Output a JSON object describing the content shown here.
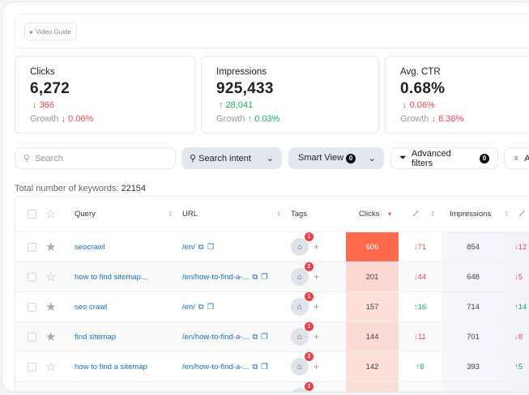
{
  "header": {
    "video_guide": "Video Guide"
  },
  "stats": [
    {
      "title": "Clicks",
      "value": "6,272",
      "delta": "366",
      "delta_dir": "down",
      "growth_label": "Growth",
      "growth": "0.06%",
      "growth_dir": "down"
    },
    {
      "title": "Impressions",
      "value": "925,433",
      "delta": "28,041",
      "delta_dir": "up",
      "growth_label": "Growth",
      "growth": "0.03%",
      "growth_dir": "up"
    },
    {
      "title": "Avg. CTR",
      "value": "0.68%",
      "delta": "0.06%",
      "delta_dir": "down",
      "growth_label": "Growth",
      "growth": "8.38%",
      "growth_dir": "down"
    }
  ],
  "filters": {
    "search_placeholder": "Search",
    "search_intent": "Search intent",
    "smart_view": "Smart View",
    "smart_view_count": "0",
    "advanced_filters": "Advanced filters",
    "advanced_count": "0",
    "more": "A"
  },
  "total": {
    "label": "Total number of keywords:",
    "value": "22154"
  },
  "table": {
    "columns": {
      "query": "Query",
      "url": "URL",
      "tags": "Tags",
      "clicks": "Clicks",
      "impressions": "Impressions"
    },
    "rows": [
      {
        "query": "seocrawl",
        "url": "/en/",
        "starred": true,
        "tags": "1",
        "clicks": "606",
        "clicks_delta": "↓71",
        "impressions": "854",
        "imp_delta": "↓12",
        "heat": 1.0
      },
      {
        "query": "how to find sitemap...",
        "url": "/en/how-to-find-a-...",
        "starred": false,
        "tags": "2",
        "clicks": "201",
        "clicks_delta": "↓44",
        "impressions": "648",
        "imp_delta": "↓5",
        "heat": 0.33
      },
      {
        "query": "seo crawl",
        "url": "/en/",
        "starred": true,
        "tags": "1",
        "clicks": "157",
        "clicks_delta": "↑16",
        "impressions": "714",
        "imp_delta": "↑14",
        "heat": 0.26
      },
      {
        "query": "find sitemap",
        "url": "/en/how-to-find-a-...",
        "starred": true,
        "tags": "1",
        "clicks": "144",
        "clicks_delta": "↓11",
        "impressions": "701",
        "imp_delta": "↓8",
        "heat": 0.24
      },
      {
        "query": "how to find a sitemap",
        "url": "/en/how-to-find-a-...",
        "starred": false,
        "tags": "2",
        "clicks": "142",
        "clicks_delta": "↑8",
        "impressions": "393",
        "imp_delta": "↑5",
        "heat": 0.23
      },
      {
        "query": "",
        "url": "",
        "starred": false,
        "tags": "2",
        "clicks": "",
        "clicks_delta": "",
        "impressions": "",
        "imp_delta": "",
        "heat": 0.22
      }
    ]
  },
  "colors": {
    "heat": "#ff6a4d",
    "down": "#f0474c",
    "up": "#16b456",
    "link": "#1b6fb8"
  }
}
